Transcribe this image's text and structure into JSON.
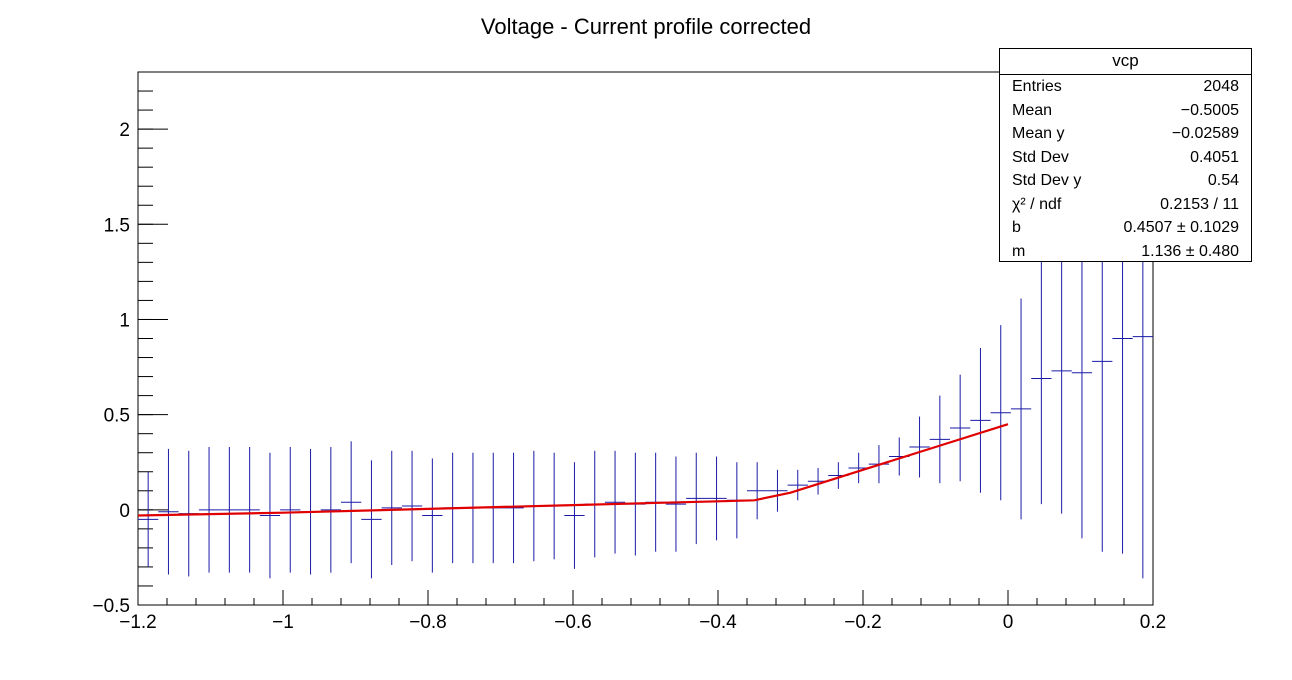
{
  "chart_data": {
    "type": "profile",
    "title": "Voltage - Current profile corrected",
    "xlim": [
      -1.2,
      0.2
    ],
    "ylim": [
      -0.5,
      2.3
    ],
    "x_ticks": [
      "−1.2",
      "−1",
      "−0.8",
      "−0.6",
      "−0.4",
      "−0.2",
      "0",
      "0.2"
    ],
    "y_ticks": [
      "−0.5",
      "0",
      "0.5",
      "1",
      "1.5",
      "2"
    ],
    "colors": {
      "profile": "#1a1aa6",
      "fit": "#e00000",
      "axis": "#000000"
    },
    "profile": {
      "bin_width": 0.028,
      "x": [
        -1.186,
        -1.158,
        -1.13,
        -1.102,
        -1.074,
        -1.046,
        -1.018,
        -0.99,
        -0.962,
        -0.934,
        -0.906,
        -0.878,
        -0.85,
        -0.822,
        -0.794,
        -0.766,
        -0.738,
        -0.71,
        -0.682,
        -0.654,
        -0.626,
        -0.598,
        -0.57,
        -0.542,
        -0.514,
        -0.486,
        -0.458,
        -0.43,
        -0.402,
        -0.374,
        -0.346,
        -0.318,
        -0.29,
        -0.262,
        -0.234,
        -0.206,
        -0.178,
        -0.15,
        -0.122,
        -0.094,
        -0.066,
        -0.038,
        -0.01,
        0.018,
        0.046,
        0.074,
        0.102,
        0.13,
        0.158,
        0.186
      ],
      "y": [
        -0.05,
        -0.01,
        -0.02,
        0.0,
        0.0,
        0.0,
        -0.03,
        0.0,
        -0.01,
        0.0,
        0.04,
        -0.05,
        0.01,
        0.02,
        -0.03,
        0.01,
        0.01,
        0.01,
        0.01,
        0.02,
        0.02,
        -0.03,
        0.03,
        0.04,
        0.03,
        0.04,
        0.03,
        0.06,
        0.06,
        0.05,
        0.1,
        0.1,
        0.13,
        0.15,
        0.18,
        0.22,
        0.24,
        0.28,
        0.33,
        0.37,
        0.43,
        0.47,
        0.51,
        0.53,
        0.69,
        0.73,
        0.72,
        0.78,
        0.9,
        0.91
      ],
      "err": [
        0.25,
        0.33,
        0.33,
        0.33,
        0.33,
        0.33,
        0.33,
        0.33,
        0.33,
        0.33,
        0.32,
        0.31,
        0.3,
        0.29,
        0.3,
        0.29,
        0.29,
        0.29,
        0.29,
        0.29,
        0.28,
        0.28,
        0.28,
        0.27,
        0.27,
        0.26,
        0.25,
        0.24,
        0.22,
        0.2,
        0.15,
        0.11,
        0.08,
        0.07,
        0.07,
        0.08,
        0.1,
        0.1,
        0.16,
        0.23,
        0.28,
        0.38,
        0.46,
        0.58,
        0.66,
        0.75,
        0.87,
        1.0,
        1.13,
        1.27
      ]
    },
    "fit": {
      "x": [
        -1.2,
        -1.0,
        -0.8,
        -0.6,
        -0.5,
        -0.4,
        -0.35,
        -0.3,
        -0.2,
        -0.1,
        0.0
      ],
      "y": [
        -0.03,
        -0.015,
        0.005,
        0.025,
        0.035,
        0.045,
        0.05,
        0.09,
        0.21,
        0.33,
        0.45
      ]
    }
  },
  "stats_box": {
    "title": "vcp",
    "rows": [
      {
        "label": "Entries",
        "value": "2048"
      },
      {
        "label": "Mean",
        "value": "−0.5005"
      },
      {
        "label": "Mean y",
        "value": "−0.02589"
      },
      {
        "label": "Std Dev",
        "value": "0.4051"
      },
      {
        "label": "Std Dev y",
        "value": "0.54"
      },
      {
        "label": "χ² / ndf",
        "value": "0.2153 / 11"
      },
      {
        "label": "b",
        "value": "0.4507 ± 0.1029"
      },
      {
        "label": "m",
        "value": "1.136 ± 0.480"
      }
    ]
  }
}
